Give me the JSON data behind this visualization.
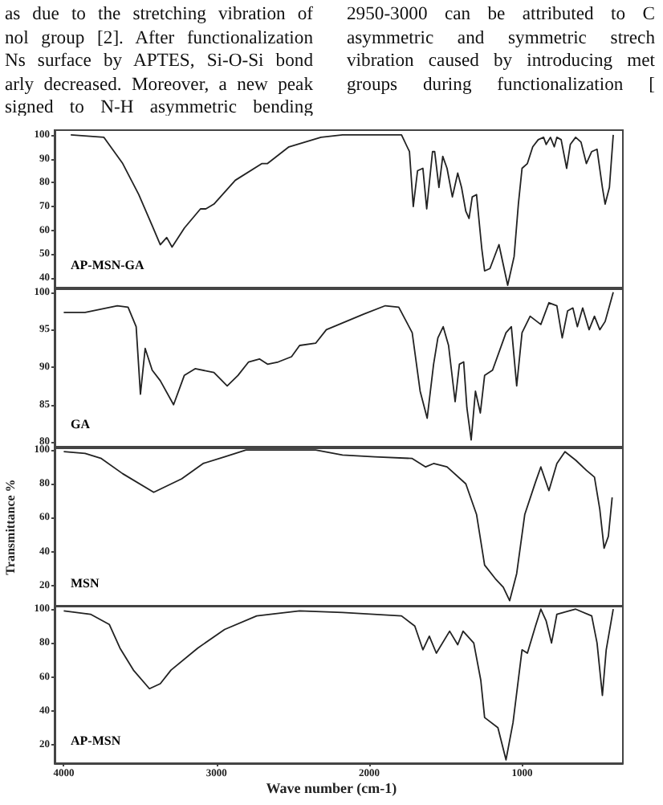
{
  "chart_data": [
    {
      "type": "other",
      "annotations": [
        "as due to the stretching vibration of",
        "nol group [2]. After functionalization",
        "Ns surface by APTES, Si-O-Si bond",
        "arly decreased. Moreover, a new peak",
        "signed to N-H asymmetric bending",
        "2950-3000 can be attributed to C",
        "asymmetric and symmetric strech",
        "vibration caused by introducing met",
        "groups during functionalization ["
      ]
    },
    {
      "type": "line",
      "annotations": [
        "AP-MSN-GA"
      ],
      "xlim": [
        4060,
        340
      ],
      "xticks": [
        4000,
        3000,
        2000,
        1000
      ],
      "ylim": [
        36,
        102
      ],
      "yticks": [
        40,
        50,
        60,
        70,
        80,
        90,
        100
      ],
      "tick_labels": "y",
      "series": [
        {
          "color": "#222222",
          "x": [
            3954,
            3737,
            3614,
            3509,
            3421,
            3368,
            3326,
            3291,
            3210,
            3105,
            3070,
            3017,
            2877,
            2702,
            2666,
            2526,
            2316,
            2175,
            1789,
            1737,
            1712,
            1684,
            1649,
            1624,
            1586,
            1572,
            1544,
            1519,
            1491,
            1456,
            1421,
            1396,
            1368,
            1347,
            1326,
            1298,
            1263,
            1245,
            1210,
            1151,
            1094,
            1052,
            1024,
            1000,
            965,
            930,
            894,
            859,
            842,
            814,
            789,
            772,
            744,
            708,
            684,
            649,
            614,
            579,
            544,
            509,
            474,
            456,
            428,
            403
          ],
          "values": [
            100,
            99,
            88,
            75,
            62,
            54,
            57,
            53,
            61,
            69,
            69,
            71,
            81,
            88,
            88,
            95,
            99,
            100,
            100,
            93,
            70,
            85,
            86,
            69,
            93,
            93,
            78,
            91,
            86,
            74,
            84,
            78,
            68,
            65,
            74,
            75,
            52,
            43,
            44,
            54,
            37,
            49,
            71,
            86,
            88,
            95,
            98,
            99,
            96,
            99,
            95,
            99,
            98,
            86,
            96,
            99,
            97,
            88,
            93,
            94,
            78,
            71,
            78,
            100
          ]
        }
      ]
    },
    {
      "type": "line",
      "annotations": [
        "GA"
      ],
      "xlim": [
        4060,
        340
      ],
      "xticks": [
        4000,
        3000,
        2000,
        1000
      ],
      "ylim": [
        79.4,
        100.4
      ],
      "yticks": [
        80,
        85,
        90,
        95,
        100
      ],
      "tick_labels": "y",
      "series": [
        {
          "color": "#222222",
          "x": [
            4000,
            3860,
            3649,
            3579,
            3526,
            3498,
            3467,
            3421,
            3368,
            3281,
            3211,
            3140,
            3017,
            2930,
            2860,
            2790,
            2719,
            2666,
            2596,
            2509,
            2456,
            2351,
            2281,
            2035,
            1895,
            1807,
            1719,
            1667,
            1621,
            1579,
            1551,
            1516,
            1481,
            1438,
            1410,
            1382,
            1361,
            1333,
            1305,
            1273,
            1245,
            1193,
            1105,
            1070,
            1035,
            1000,
            947,
            877,
            824,
            772,
            737,
            702,
            667,
            638,
            603,
            561,
            526,
            491,
            456,
            403
          ],
          "values": [
            97.3,
            97.3,
            98.2,
            98,
            95.4,
            86.4,
            92.5,
            89.6,
            88.2,
            85,
            88.9,
            89.8,
            89.3,
            87.5,
            88.9,
            90.7,
            91.1,
            90.4,
            90.7,
            91.4,
            92.9,
            93.2,
            95,
            97.1,
            98.2,
            98,
            94.6,
            86.8,
            83.2,
            90.4,
            93.9,
            95.4,
            92.9,
            85.4,
            90.4,
            90.7,
            84.6,
            80.3,
            86.8,
            83.9,
            88.9,
            89.6,
            94.6,
            95.4,
            87.5,
            94.6,
            96.8,
            95.7,
            98.6,
            98.2,
            93.9,
            97.5,
            97.9,
            95.4,
            97.9,
            95,
            96.8,
            95,
            96.1,
            100
          ]
        }
      ]
    },
    {
      "type": "line",
      "annotations": [
        "MSN"
      ],
      "ylabel": "Transmittance %",
      "xlim": [
        4060,
        340
      ],
      "xticks": [
        4000,
        3000,
        2000,
        1000
      ],
      "ylim": [
        8,
        101
      ],
      "yticks": [
        20,
        40,
        60,
        80,
        100
      ],
      "tick_labels": "y",
      "series": [
        {
          "color": "#222222",
          "x": [
            4000,
            3860,
            3754,
            3614,
            3411,
            3228,
            3088,
            2947,
            2807,
            2526,
            2351,
            2175,
            1965,
            1719,
            1631,
            1579,
            1491,
            1368,
            1298,
            1245,
            1175,
            1123,
            1081,
            1035,
            982,
            912,
            877,
            824,
            772,
            719,
            649,
            579,
            526,
            491,
            463,
            435,
            410
          ],
          "values": [
            99,
            98,
            95,
            86,
            75,
            83,
            92,
            96,
            100,
            100,
            100,
            97,
            96,
            95,
            90,
            92,
            90,
            80,
            62,
            32,
            24,
            19,
            11,
            27,
            62,
            81,
            90,
            76,
            92,
            99,
            94,
            88,
            84,
            65,
            42,
            49,
            72
          ]
        }
      ]
    },
    {
      "type": "line",
      "annotations": [
        "AP-MSN"
      ],
      "xlabel": "Wave number (cm-1)",
      "xlim": [
        4060,
        340
      ],
      "xticks": [
        4000,
        3000,
        2000,
        1000
      ],
      "ylim": [
        9,
        102
      ],
      "yticks": [
        20,
        40,
        60,
        80,
        100
      ],
      "series": [
        {
          "color": "#222222",
          "x": [
            4000,
            3825,
            3702,
            3632,
            3544,
            3439,
            3368,
            3298,
            3123,
            2947,
            2737,
            2456,
            2175,
            1789,
            1702,
            1649,
            1607,
            1561,
            1474,
            1421,
            1386,
            1316,
            1270,
            1245,
            1158,
            1105,
            1059,
            1000,
            965,
            912,
            877,
            842,
            807,
            772,
            649,
            544,
            509,
            474,
            449,
            403
          ],
          "values": [
            99,
            97,
            91,
            77,
            64,
            53,
            56,
            64,
            77,
            88,
            96,
            99,
            98,
            96,
            90,
            76,
            84,
            74,
            87,
            79,
            87,
            80,
            58,
            36,
            30,
            11,
            33,
            76,
            74,
            90,
            100,
            93,
            80,
            97,
            100,
            96,
            80,
            49,
            76,
            100
          ]
        }
      ]
    }
  ]
}
